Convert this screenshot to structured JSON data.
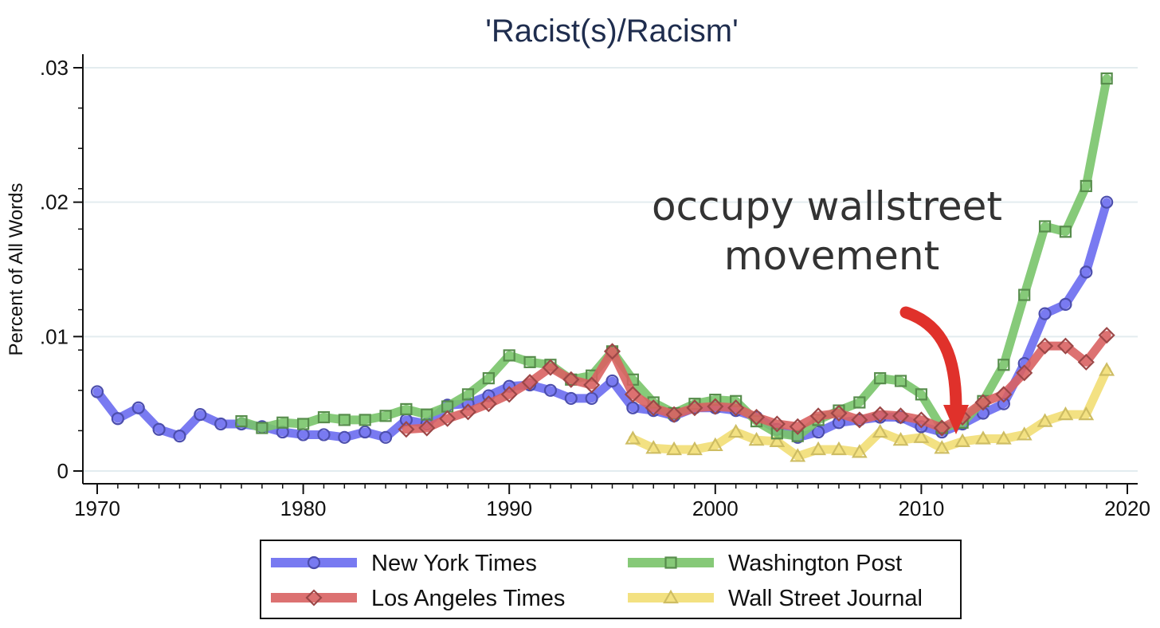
{
  "chart_data": {
    "type": "line",
    "title": "'Racist(s)/Racism'",
    "xlabel": "",
    "ylabel": "Percent of All Words",
    "xlim": [
      1970,
      2020
    ],
    "ylim": [
      0,
      0.03
    ],
    "x_ticks": [
      1970,
      1980,
      1990,
      2000,
      2010,
      2020
    ],
    "x_tick_labels": [
      "1970",
      "1980",
      "1990",
      "2000",
      "2010",
      "2020"
    ],
    "y_ticks": [
      0,
      0.01,
      0.02,
      0.03
    ],
    "y_tick_labels": [
      "0",
      ".01",
      ".02",
      ".03"
    ],
    "grid": true,
    "legend_position": "bottom",
    "annotation": {
      "text_lines": [
        "occupy wallstreet",
        "movement"
      ],
      "points_to": [
        2012,
        0.0027
      ],
      "arrow_color": "#e0312b"
    },
    "series": [
      {
        "name": "New York Times",
        "color": "#6a6cf0",
        "marker": "circle",
        "x": [
          1970,
          1971,
          1972,
          1973,
          1974,
          1975,
          1976,
          1977,
          1978,
          1979,
          1980,
          1981,
          1982,
          1983,
          1984,
          1985,
          1986,
          1987,
          1988,
          1989,
          1990,
          1991,
          1992,
          1993,
          1994,
          1995,
          1996,
          1997,
          1998,
          1999,
          2000,
          2001,
          2002,
          2003,
          2004,
          2005,
          2006,
          2007,
          2008,
          2009,
          2010,
          2011,
          2012,
          2013,
          2014,
          2015,
          2016,
          2017,
          2018,
          2019
        ],
        "values": [
          0.0059,
          0.0039,
          0.0047,
          0.0031,
          0.0026,
          0.0042,
          0.0035,
          0.0035,
          0.0033,
          0.0029,
          0.0027,
          0.0027,
          0.0025,
          0.0029,
          0.0025,
          0.0038,
          0.0035,
          0.0049,
          0.005,
          0.0056,
          0.0063,
          0.0064,
          0.006,
          0.0054,
          0.0054,
          0.0067,
          0.0047,
          0.0045,
          0.0041,
          0.0047,
          0.0047,
          0.0045,
          0.004,
          0.0031,
          0.0025,
          0.0029,
          0.0036,
          0.0038,
          0.004,
          0.004,
          0.0033,
          0.0029,
          0.0035,
          0.0043,
          0.005,
          0.008,
          0.0117,
          0.0124,
          0.0148,
          0.02
        ]
      },
      {
        "name": "Los Angeles Times",
        "color": "#d96262",
        "marker": "diamond",
        "x": [
          1985,
          1986,
          1987,
          1988,
          1989,
          1990,
          1991,
          1992,
          1993,
          1994,
          1995,
          1996,
          1997,
          1998,
          1999,
          2000,
          2001,
          2002,
          2003,
          2004,
          2005,
          2006,
          2007,
          2008,
          2009,
          2010,
          2011,
          2012,
          2013,
          2014,
          2015,
          2016,
          2017,
          2018,
          2019
        ],
        "values": [
          0.0031,
          0.0032,
          0.0039,
          0.0044,
          0.005,
          0.0057,
          0.0066,
          0.0077,
          0.0068,
          0.0064,
          0.0089,
          0.0057,
          0.0047,
          0.0042,
          0.0047,
          0.0048,
          0.0047,
          0.004,
          0.0035,
          0.0033,
          0.0041,
          0.0043,
          0.0038,
          0.0042,
          0.0041,
          0.0038,
          0.0032,
          0.004,
          0.0051,
          0.0057,
          0.0073,
          0.0093,
          0.0093,
          0.0081,
          0.0101
        ]
      },
      {
        "name": "Washington Post",
        "color": "#79c46a",
        "marker": "square",
        "x": [
          1977,
          1978,
          1979,
          1980,
          1981,
          1982,
          1983,
          1984,
          1985,
          1986,
          1987,
          1988,
          1989,
          1990,
          1991,
          1992,
          1993,
          1994,
          1995,
          1996,
          1997,
          1998,
          1999,
          2000,
          2001,
          2002,
          2003,
          2004,
          2005,
          2006,
          2007,
          2008,
          2009,
          2010,
          2011,
          2012,
          2013,
          2014,
          2015,
          2016,
          2017,
          2018,
          2019
        ],
        "values": [
          0.0037,
          0.0032,
          0.0036,
          0.0035,
          0.004,
          0.0038,
          0.0038,
          0.0041,
          0.0046,
          0.0042,
          0.0048,
          0.0057,
          0.0069,
          0.0086,
          0.0081,
          0.0079,
          0.0068,
          0.0071,
          0.0089,
          0.0068,
          0.0051,
          0.0043,
          0.005,
          0.0053,
          0.0052,
          0.0037,
          0.0028,
          0.0026,
          0.0038,
          0.0045,
          0.0051,
          0.0069,
          0.0067,
          0.0057,
          0.0032,
          0.0036,
          0.0052,
          0.0079,
          0.0131,
          0.0182,
          0.0178,
          0.0212,
          0.0292
        ]
      },
      {
        "name": "Wall Street Journal",
        "color": "#f2de74",
        "marker": "triangle",
        "x": [
          1996,
          1997,
          1998,
          1999,
          2000,
          2001,
          2002,
          2003,
          2004,
          2005,
          2006,
          2007,
          2008,
          2009,
          2010,
          2011,
          2012,
          2013,
          2014,
          2015,
          2016,
          2017,
          2018,
          2019
        ],
        "values": [
          0.0024,
          0.0017,
          0.0016,
          0.0016,
          0.0019,
          0.0029,
          0.0023,
          0.0022,
          0.0011,
          0.0016,
          0.0016,
          0.0014,
          0.0029,
          0.0023,
          0.0025,
          0.0017,
          0.0022,
          0.0024,
          0.0024,
          0.0027,
          0.0037,
          0.0042,
          0.0042,
          0.0075
        ]
      }
    ]
  }
}
